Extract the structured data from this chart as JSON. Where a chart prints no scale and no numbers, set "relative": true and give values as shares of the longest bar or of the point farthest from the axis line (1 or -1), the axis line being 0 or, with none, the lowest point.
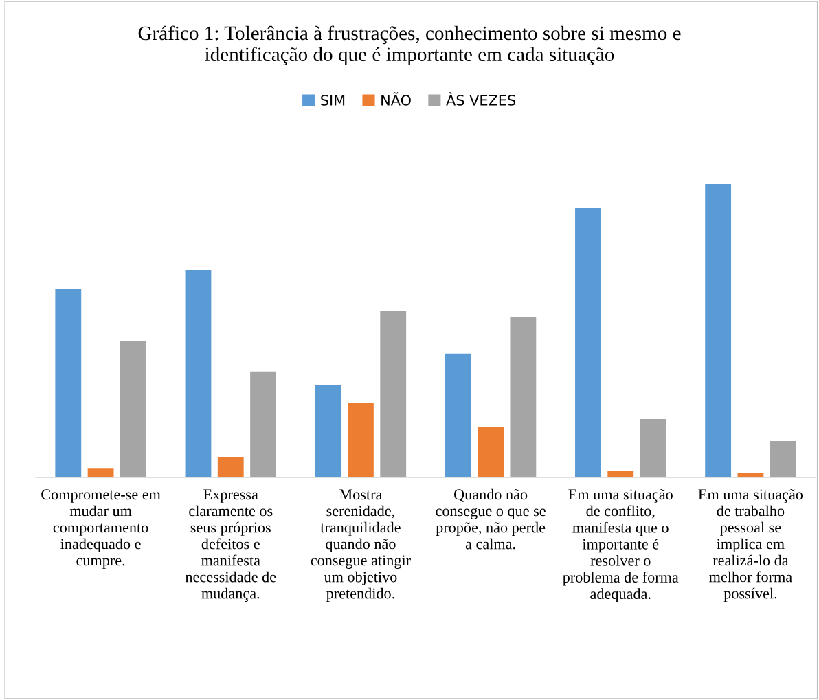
{
  "chart_data": {
    "type": "bar",
    "title": "Gráfico 1: Tolerância à frustrações, conhecimento sobre si mesmo e identificação do que é importante em cada situação",
    "categories": [
      "Compromete-se em mudar um comportamento inadequado e cumpre.",
      "Expressa claramente os seus próprios defeitos e manifesta necessidade de mudança.",
      "Mostra serenidade, tranquilidade quando não consegue atingir um objetivo pretendido.",
      "Quando não consegue o que se propõe, não perde a calma.",
      "Em uma situação de conflito, manifesta que o importante é resolver o problema de forma adequada.",
      "Em uma situação de trabalho pessoal se implica em realizá-lo da melhor forma possível."
    ],
    "relative": true,
    "series": [
      {
        "name": "SIM",
        "color": "#5b9bd5",
        "values": [
          0.644,
          0.707,
          0.316,
          0.422,
          0.918,
          1
        ]
      },
      {
        "name": "NÃO",
        "color": "#ed7d31",
        "values": [
          0.03,
          0.07,
          0.253,
          0.173,
          0.023,
          0.014
        ]
      },
      {
        "name": "ÀS VEZES",
        "color": "#a5a5a5",
        "values": [
          0.466,
          0.361,
          0.569,
          0.546,
          0.199,
          0.124
        ]
      }
    ],
    "legend": "top"
  }
}
